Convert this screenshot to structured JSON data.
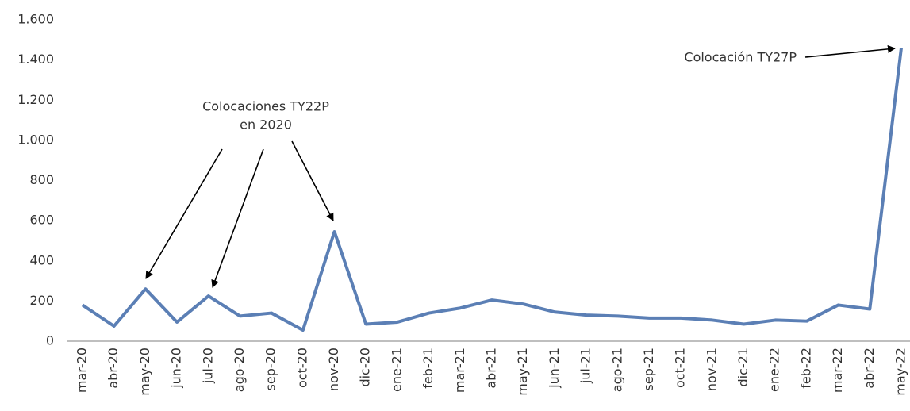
{
  "chart_data": {
    "type": "line",
    "categories": [
      "mar-20",
      "abr-20",
      "may-20",
      "jun-20",
      "jul-20",
      "ago-20",
      "sep-20",
      "oct-20",
      "nov-20",
      "dic-20",
      "ene-21",
      "feb-21",
      "mar-21",
      "abr-21",
      "may-21",
      "jun-21",
      "jul-21",
      "ago-21",
      "sep-21",
      "oct-21",
      "nov-21",
      "dic-21",
      "ene-22",
      "feb-22",
      "mar-22",
      "abr-22",
      "may-22"
    ],
    "values": [
      180,
      75,
      260,
      95,
      225,
      125,
      140,
      55,
      545,
      85,
      95,
      140,
      165,
      205,
      185,
      145,
      130,
      125,
      115,
      115,
      105,
      85,
      105,
      100,
      180,
      160,
      1460
    ],
    "color": "#5b7fb5",
    "ylim": [
      0,
      1600
    ],
    "yticks": [
      0,
      200,
      400,
      600,
      800,
      {
        "value": 1000,
        "label": "1.000"
      },
      {
        "value": 1200,
        "label": "1.200"
      },
      {
        "value": 1400,
        "label": "1.400"
      },
      {
        "value": 1600,
        "label": "1.600"
      }
    ],
    "grid": false,
    "annotations": [
      {
        "text": [
          "Colocaciones TY22P",
          "en 2020"
        ]
      },
      {
        "text": "Colocación TY27P"
      }
    ]
  }
}
